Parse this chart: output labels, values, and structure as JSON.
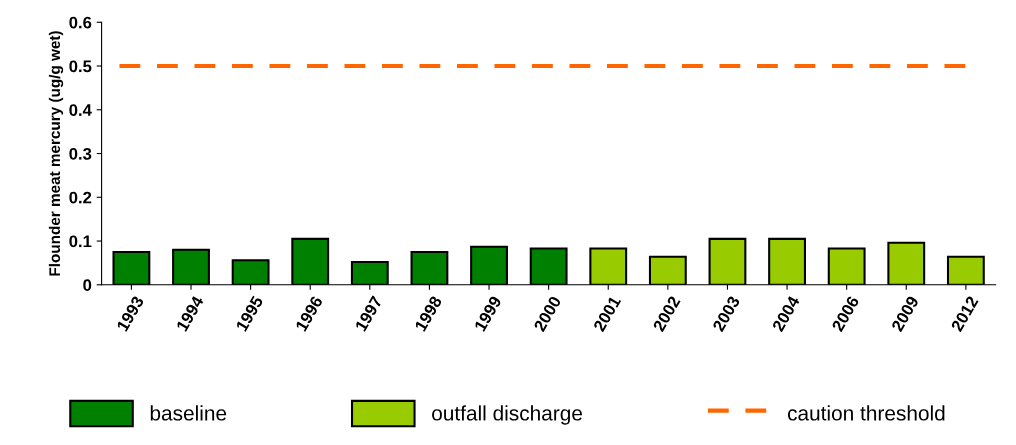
{
  "chart_data": {
    "type": "bar",
    "ylabel": "Flounder meat mercury (ug/g wet)",
    "categories": [
      "1993",
      "1994",
      "1995",
      "1996",
      "1997",
      "1998",
      "1999",
      "2000",
      "2001",
      "2002",
      "2003",
      "2004",
      "2006",
      "2009",
      "2012"
    ],
    "series": [
      {
        "name": "baseline",
        "color": "#008000",
        "values": [
          0.075,
          0.08,
          0.056,
          0.105,
          0.052,
          0.075,
          0.087,
          0.083,
          null,
          null,
          null,
          null,
          null,
          null,
          null
        ]
      },
      {
        "name": "outfall discharge",
        "color": "#99cc00",
        "values": [
          null,
          null,
          null,
          null,
          null,
          null,
          null,
          null,
          0.083,
          0.064,
          0.105,
          0.105,
          0.083,
          0.096,
          0.064
        ]
      }
    ],
    "ref_lines": [
      {
        "axis": "y",
        "value": 0.5,
        "label": "caution threshold",
        "color": "#ff6600",
        "line_style": "dashed"
      }
    ],
    "ylim": [
      0,
      0.6
    ],
    "yticks": [
      0,
      0.1,
      0.2,
      0.3,
      0.4,
      0.5,
      0.6
    ],
    "grid": false,
    "legend": "bottom"
  }
}
